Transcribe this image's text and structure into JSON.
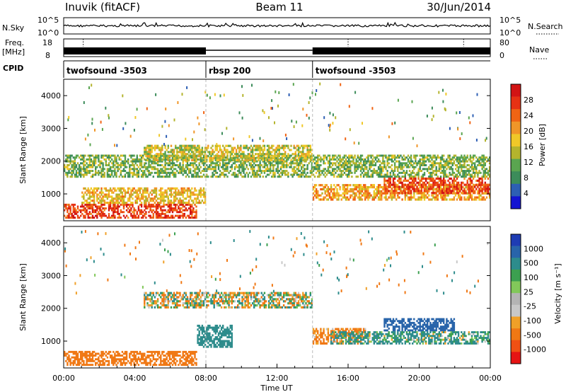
{
  "header": {
    "radar": "Inuvik (fitACF)",
    "beam": "Beam 11",
    "date": "30/Jun/2014"
  },
  "strips": {
    "nsky_label": "N.Sky",
    "nsky_ticks": [
      "10^5",
      "10^0"
    ],
    "nsearch_label": "N.Search",
    "nsearch_ticks": [
      "10^5",
      "10^0"
    ],
    "freq_label": "Freq.",
    "freq_unit": "[MHz]",
    "freq_ticks": [
      "18",
      "8"
    ],
    "nave_label": "Nave",
    "nave_ticks": [
      "80",
      "0"
    ],
    "cpid_label": "CPID",
    "cpid_segments": [
      {
        "label": "twofsound -3503",
        "start_h": 0,
        "end_h": 8
      },
      {
        "label": "rbsp 200",
        "start_h": 8,
        "end_h": 14
      },
      {
        "label": "twofsound -3503",
        "start_h": 14,
        "end_h": 24
      }
    ]
  },
  "chart_data": [
    {
      "type": "heatmap",
      "name": "power",
      "ylabel": "Slant Range [km]",
      "xlim": [
        0,
        24
      ],
      "ylim": [
        180,
        4500
      ],
      "yticks": [
        1000,
        2000,
        3000,
        4000
      ],
      "colorbar": {
        "label": "Power [dB]",
        "ticks": [
          4,
          8,
          12,
          16,
          20,
          24,
          28
        ],
        "range": [
          0,
          32
        ],
        "colors": [
          "#1414d2",
          "#2d5fb4",
          "#3c8c5a",
          "#5aa550",
          "#b4b42d",
          "#f0c828",
          "#f09628",
          "#f06414",
          "#e63214",
          "#d21414"
        ]
      },
      "echo_bands": [
        {
          "t": [
            0,
            7.5
          ],
          "r": [
            250,
            700
          ],
          "power_db": 27
        },
        {
          "t": [
            1,
            8
          ],
          "r": [
            700,
            1200
          ],
          "power_db": 18
        },
        {
          "t": [
            0,
            24
          ],
          "r": [
            1500,
            2200
          ],
          "power_db": 12
        },
        {
          "t": [
            4.5,
            14
          ],
          "r": [
            2000,
            2500
          ],
          "power_db": 16
        },
        {
          "t": [
            14,
            24
          ],
          "r": [
            800,
            1300
          ],
          "power_db": 20
        },
        {
          "t": [
            18,
            24
          ],
          "r": [
            1000,
            1500
          ],
          "power_db": 26
        }
      ]
    },
    {
      "type": "heatmap",
      "name": "velocity",
      "ylabel": "Slant Range [km]",
      "xlabel": "Time UT",
      "xlim": [
        0,
        24
      ],
      "ylim": [
        180,
        4500
      ],
      "yticks": [
        1000,
        2000,
        3000,
        4000
      ],
      "xticks": [
        "00:00",
        "04:00",
        "08:00",
        "12:00",
        "16:00",
        "20:00",
        "00:00"
      ],
      "colorbar": {
        "label": "Velocity [m s⁻¹]",
        "ticks": [
          "1000",
          "500",
          "100",
          "25",
          "-25",
          "-100",
          "-500",
          "-1000"
        ],
        "colors": [
          "#1e3cb4",
          "#2864aa",
          "#2d8c8c",
          "#3ca050",
          "#82c85a",
          "#b4b4b4",
          "#c8c8c8",
          "#f0a028",
          "#f07814",
          "#f05014",
          "#e61414"
        ]
      },
      "echo_bands": [
        {
          "t": [
            0,
            7.5
          ],
          "r": [
            250,
            700
          ],
          "velocity": -300
        },
        {
          "t": [
            4.5,
            14
          ],
          "r": [
            2000,
            2500
          ],
          "velocity": 0
        },
        {
          "t": [
            7.5,
            9.5
          ],
          "r": [
            800,
            1500
          ],
          "velocity": 300
        },
        {
          "t": [
            14,
            17
          ],
          "r": [
            900,
            1400
          ],
          "velocity": -200
        },
        {
          "t": [
            18,
            22
          ],
          "r": [
            1300,
            1700
          ],
          "velocity": 800
        },
        {
          "t": [
            15,
            24
          ],
          "r": [
            900,
            1300
          ],
          "velocity": 150
        }
      ]
    }
  ]
}
